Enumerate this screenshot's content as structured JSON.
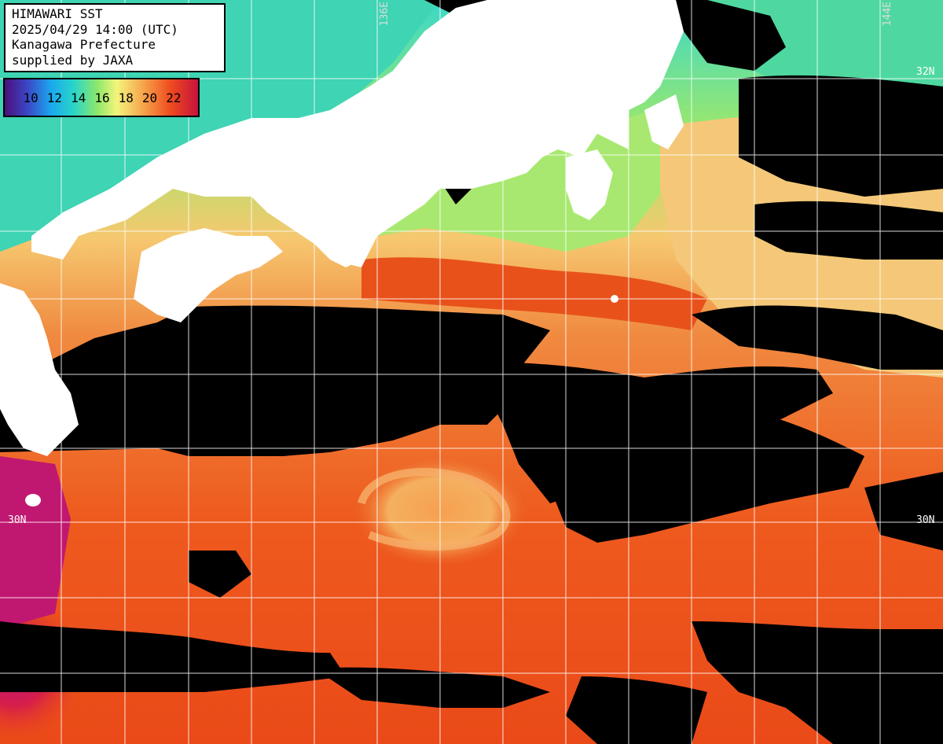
{
  "header": {
    "lines": [
      "HIMAWARI SST",
      "2025/04/29 14:00 (UTC)",
      "Kanagawa Prefecture",
      "supplied by JAXA"
    ]
  },
  "colorbar": {
    "ticks": [
      "10",
      "12",
      "14",
      "16",
      "18",
      "20",
      "22"
    ],
    "colors": [
      "#4a0f7a",
      "#3a48c8",
      "#1aa8ee",
      "#2ad6c8",
      "#8ee86a",
      "#f4f47c",
      "#f6a24a",
      "#ee4a1e",
      "#c6123e"
    ]
  },
  "grid_labels": {
    "lat_32": "32N",
    "lat_30_left": "30N",
    "lat_30_right": "30N",
    "lon_136": "136E",
    "lon_144": "144E"
  },
  "colors": {
    "land": "#ffffff",
    "no_data": "#000000",
    "gridline": "#ffffff",
    "kuroshio_warm": "#e8521a",
    "offshore_warm": "#f07628",
    "coastal_cool": "#9ee86a",
    "north_cool": "#3ad8c8",
    "transition": "#f8d870",
    "southwest_hot": "#c4166a"
  }
}
